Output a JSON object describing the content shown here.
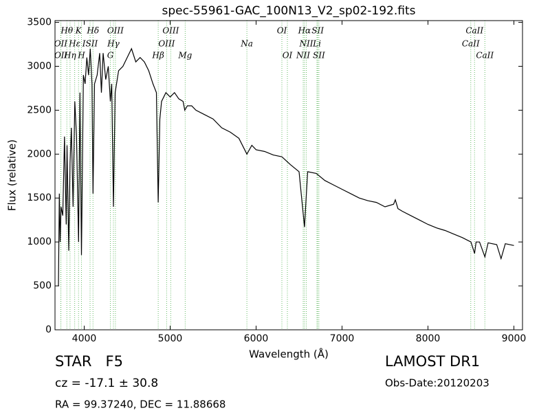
{
  "chart_data": {
    "type": "line",
    "title": "spec-55961-GAC_100N13_V2_sp02-192.fits",
    "xlabel": "Wavelength (Å)",
    "ylabel": "Flux (relative)",
    "xlim": [
      3660,
      9100
    ],
    "ylim": [
      0,
      3520
    ],
    "xticks": [
      4000,
      5000,
      6000,
      7000,
      8000,
      9000
    ],
    "yticks": [
      0,
      500,
      1000,
      1500,
      2000,
      2500,
      3000,
      3500
    ],
    "grid": false,
    "line_color": "#000000",
    "marker_color": "#66bb66",
    "x": [
      3700,
      3710,
      3720,
      3730,
      3750,
      3770,
      3790,
      3800,
      3820,
      3835,
      3850,
      3870,
      3890,
      3910,
      3934,
      3950,
      3968,
      3990,
      4010,
      4030,
      4050,
      4070,
      4090,
      4102,
      4120,
      4150,
      4180,
      4200,
      4220,
      4250,
      4280,
      4304,
      4320,
      4340,
      4360,
      4400,
      4450,
      4500,
      4550,
      4600,
      4650,
      4700,
      4750,
      4800,
      4840,
      4861,
      4880,
      4900,
      4950,
      5000,
      5050,
      5100,
      5150,
      5170,
      5200,
      5250,
      5300,
      5400,
      5500,
      5600,
      5700,
      5800,
      5893,
      5950,
      6000,
      6100,
      6200,
      6300,
      6400,
      6500,
      6563,
      6600,
      6700,
      6800,
      6900,
      7000,
      7100,
      7200,
      7300,
      7400,
      7500,
      7600,
      7620,
      7650,
      7700,
      7800,
      7900,
      8000,
      8100,
      8200,
      8300,
      8400,
      8500,
      8542,
      8560,
      8600,
      8662,
      8700,
      8800,
      8850,
      8900,
      9000
    ],
    "values": [
      500,
      1550,
      1000,
      1400,
      1300,
      2200,
      1200,
      2100,
      900,
      1900,
      2300,
      1400,
      2600,
      2200,
      1000,
      2700,
      850,
      2900,
      2800,
      3100,
      2900,
      3200,
      2800,
      1550,
      2800,
      2900,
      3150,
      2700,
      3150,
      2850,
      3000,
      2600,
      2800,
      1400,
      2700,
      2950,
      3000,
      3100,
      3200,
      3050,
      3100,
      3050,
      2950,
      2800,
      2700,
      1450,
      2400,
      2600,
      2700,
      2650,
      2700,
      2630,
      2600,
      2500,
      2550,
      2550,
      2500,
      2450,
      2400,
      2300,
      2250,
      2180,
      2000,
      2100,
      2050,
      2030,
      1990,
      1970,
      1880,
      1800,
      1170,
      1800,
      1780,
      1700,
      1650,
      1600,
      1550,
      1500,
      1470,
      1450,
      1400,
      1430,
      1480,
      1380,
      1350,
      1300,
      1250,
      1200,
      1160,
      1130,
      1090,
      1050,
      1000,
      870,
      1000,
      1000,
      830,
      990,
      970,
      810,
      980,
      960
    ],
    "annotations": [
      [
        {
          "label": "Hθ",
          "x": 3798
        },
        {
          "label": "K",
          "x": 3934
        },
        {
          "label": "Hδ",
          "x": 4102
        },
        {
          "label": "OIII",
          "x": 4363
        },
        {
          "label": "OIII",
          "x": 5007
        },
        {
          "label": "OI",
          "x": 6300
        },
        {
          "label": "Hα",
          "x": 6563
        },
        {
          "label": "SII",
          "x": 6717
        },
        {
          "label": "CaII",
          "x": 8542
        }
      ],
      [
        {
          "label": "OII",
          "x": 3727
        },
        {
          "label": "Hε",
          "x": 3889
        },
        {
          "label": "ISII",
          "x": 4068
        },
        {
          "label": "Hγ",
          "x": 4340
        },
        {
          "label": "OIII",
          "x": 4959
        },
        {
          "label": "Na",
          "x": 5893
        },
        {
          "label": "NII",
          "x": 6584
        },
        {
          "label": "Li",
          "x": 6708
        },
        {
          "label": "CaII",
          "x": 8498
        }
      ],
      [
        {
          "label": "OII",
          "x": 3729
        },
        {
          "label": "Hη",
          "x": 3835
        },
        {
          "label": "H",
          "x": 3968
        },
        {
          "label": "G",
          "x": 4304
        },
        {
          "label": "Hβ",
          "x": 4861
        },
        {
          "label": "Mg",
          "x": 5175
        },
        {
          "label": "OI",
          "x": 6364
        },
        {
          "label": "NII",
          "x": 6548
        },
        {
          "label": "SII",
          "x": 6731
        },
        {
          "label": "CaII",
          "x": 8662
        }
      ]
    ],
    "info_left": [
      "STAR   F5",
      "cz = -17.1 ± 30.8",
      "RA = 99.37240, DEC = 11.88668"
    ],
    "info_right": [
      "LAMOST DR1",
      "Obs-Date:20120203"
    ]
  }
}
